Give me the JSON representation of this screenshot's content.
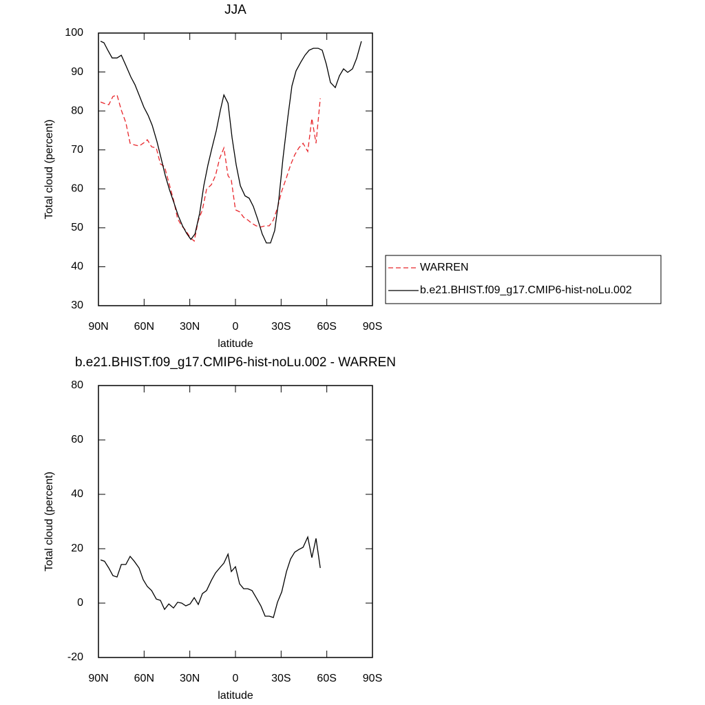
{
  "chart_data": [
    {
      "type": "line",
      "title": "JJA",
      "xlabel": "latitude",
      "ylabel": "Total cloud (percent)",
      "xlim": [
        90,
        -90
      ],
      "ylim": [
        30,
        100
      ],
      "xticks": [
        {
          "value": 90,
          "label": "90N"
        },
        {
          "value": 60,
          "label": "60N"
        },
        {
          "value": 30,
          "label": "30N"
        },
        0,
        {
          "value": -30,
          "label": "30S"
        },
        {
          "value": -60,
          "label": "60S"
        },
        {
          "value": -90,
          "label": "90S"
        }
      ],
      "yticks": [
        30,
        40,
        50,
        60,
        70,
        80,
        90,
        100
      ],
      "series": [
        {
          "name": "WARREN",
          "color": "#e8262b",
          "line_style": "dashed",
          "x": [
            88.6,
            86,
            83.2,
            80.5,
            77.8,
            75,
            72,
            69.2,
            66.5,
            63.3,
            60.6,
            57.9,
            55.1,
            52,
            49.3,
            46.6,
            43.8,
            40.7,
            38,
            35.3,
            32.6,
            29.8,
            27.1,
            24.4,
            21.7,
            19,
            15.8,
            13.1,
            10.4,
            7.6,
            4.9,
            2.7,
            0,
            -2.7,
            -5.4,
            -8.1,
            -10.9,
            -13.6,
            -16.7,
            -19.5,
            -22.2,
            -24.9,
            -27.6,
            -30.4,
            -33.5,
            -36.2,
            -38.9,
            -41.6,
            -44.4,
            -47.5,
            -50.2,
            -52.9,
            -55.7
          ],
          "values": [
            82.3,
            81.9,
            81.6,
            83.7,
            84.1,
            80.2,
            77,
            71.7,
            71.3,
            71,
            71.7,
            72.6,
            70.8,
            70.5,
            66.4,
            65.7,
            61.6,
            57.2,
            52.3,
            50.5,
            49.3,
            47.5,
            46.6,
            51.9,
            54.6,
            59.9,
            61.1,
            63.4,
            67.8,
            70.5,
            63.4,
            62.2,
            54.6,
            54.1,
            52.7,
            52,
            51.1,
            50.5,
            50.2,
            50.5,
            50.5,
            52,
            55.1,
            59.4,
            62.9,
            66.1,
            68.7,
            70.5,
            71.7,
            69.6,
            78.1,
            71.7,
            83.2
          ]
        },
        {
          "name": "b.e21.BHIST.f09_g17.CMIP6-hist-noLu.002",
          "color": "#000000",
          "line_style": "solid",
          "x": [
            88.6,
            86.4,
            83.7,
            81,
            77.8,
            75,
            72,
            68.7,
            66,
            62.9,
            60.2,
            57.4,
            54.7,
            51.6,
            48.8,
            46.1,
            43.3,
            40.2,
            37.5,
            34.8,
            32.1,
            29.3,
            26.6,
            23.5,
            20.8,
            18.1,
            15.4,
            12.6,
            9.9,
            7.6,
            4.9,
            2.2,
            -0.5,
            -3.2,
            -6.3,
            -9,
            -11.7,
            -14.5,
            -17.6,
            -20.3,
            -23,
            -25.8,
            -28.5,
            -31.2,
            -34.4,
            -37.1,
            -39.8,
            -43,
            -45.7,
            -48.4,
            -51.2,
            -54.3,
            -57,
            -59.7,
            -62.4,
            -65.6,
            -68.3,
            -71,
            -73.7,
            -76.9,
            -79.6,
            -82.7
          ],
          "values": [
            97.9,
            97.5,
            95.5,
            93.6,
            93.6,
            94.3,
            91.7,
            88.7,
            86.7,
            83.7,
            81,
            78.9,
            76.3,
            72.2,
            67.8,
            63.4,
            59.7,
            56.2,
            53,
            50.5,
            48.6,
            47,
            48.4,
            53.7,
            60.8,
            66.1,
            70.5,
            74.9,
            80.2,
            84.1,
            82,
            73.1,
            66.1,
            60.8,
            58.2,
            57.6,
            55.5,
            52.3,
            48.4,
            46.1,
            46.1,
            49.3,
            57.3,
            67.8,
            78.4,
            86.4,
            90.3,
            92.6,
            94.3,
            95.6,
            96.1,
            96.1,
            95.6,
            92,
            87.3,
            86,
            89,
            90.8,
            89.9,
            90.8,
            93.5,
            97.9
          ]
        }
      ]
    },
    {
      "type": "line",
      "title": "b.e21.BHIST.f09_g17.CMIP6-hist-noLu.002 - WARREN",
      "xlabel": "latitude",
      "ylabel": "Total cloud (percent)",
      "xlim": [
        90,
        -90
      ],
      "ylim": [
        -20,
        80
      ],
      "xticks": [
        {
          "value": 90,
          "label": "90N"
        },
        {
          "value": 60,
          "label": "60N"
        },
        {
          "value": 30,
          "label": "30N"
        },
        0,
        {
          "value": -30,
          "label": "30S"
        },
        {
          "value": -60,
          "label": "60S"
        },
        {
          "value": -90,
          "label": "90S"
        }
      ],
      "yticks": [
        -20,
        0,
        20,
        40,
        60,
        80
      ],
      "series": [
        {
          "color": "#000000",
          "line_style": "solid",
          "x": [
            88.6,
            86,
            83.2,
            80.5,
            77.8,
            75,
            72,
            69.2,
            66.5,
            63.3,
            60.6,
            57.9,
            55.1,
            52,
            49.3,
            46.6,
            43.8,
            40.7,
            38,
            35.3,
            32.6,
            29.8,
            27.1,
            24.4,
            21.7,
            19,
            15.8,
            13.1,
            10.4,
            7.6,
            4.9,
            2.7,
            0,
            -2.7,
            -5.4,
            -8.1,
            -10.9,
            -13.6,
            -16.7,
            -19.5,
            -22.2,
            -24.9,
            -27.6,
            -30.4,
            -33.5,
            -36.2,
            -38.9,
            -41.6,
            -44.4,
            -47.5,
            -50.2,
            -52.9,
            -55.7
          ],
          "values": [
            15.9,
            15.4,
            12.9,
            10.1,
            9.6,
            14.2,
            14.2,
            17.2,
            15.4,
            12.9,
            8.6,
            6.1,
            4.6,
            1.5,
            1,
            -2.3,
            -0.3,
            -1.8,
            0.3,
            0,
            -1,
            -0.3,
            2,
            -0.5,
            3.5,
            4.6,
            8.4,
            11.1,
            12.9,
            14.7,
            18,
            11.6,
            13.4,
            7.1,
            5.3,
            5.3,
            4.6,
            2,
            -1,
            -4.8,
            -4.8,
            -5.3,
            0.3,
            4.1,
            11.6,
            16.2,
            18.7,
            19.7,
            20.5,
            24.3,
            16.7,
            23.8,
            12.9
          ]
        }
      ]
    }
  ]
}
